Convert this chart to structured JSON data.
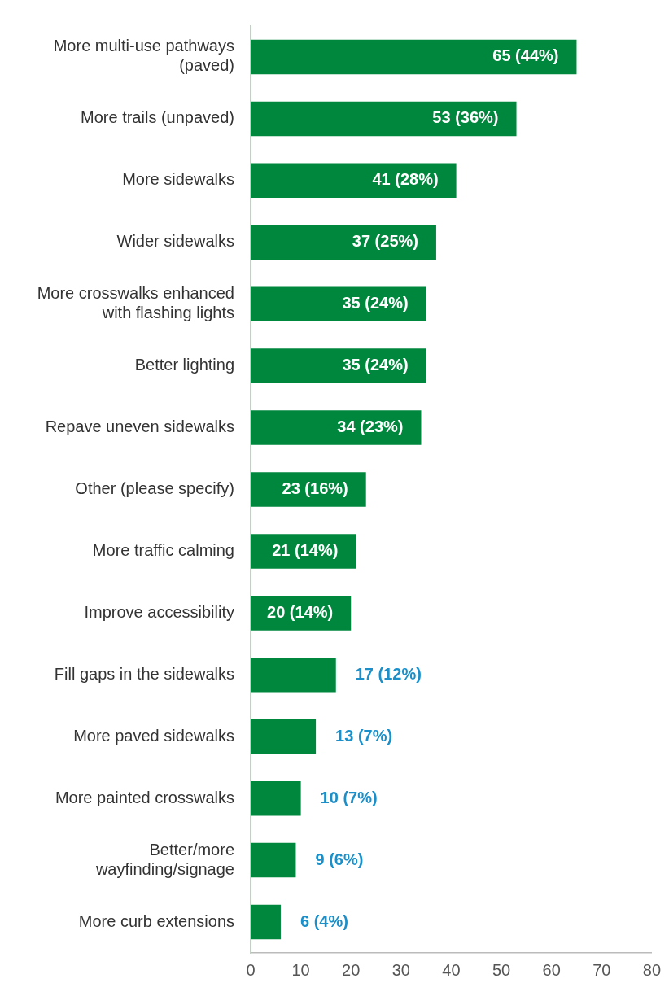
{
  "chart_data": {
    "type": "bar",
    "orientation": "horizontal",
    "categories": [
      "More multi-use pathways (paved)",
      "More trails (unpaved)",
      "More sidewalks",
      "Wider sidewalks",
      "More crosswalks enhanced with flashing lights",
      "Better lighting",
      "Repave uneven sidewalks",
      "Other (please specify)",
      "More traffic calming",
      "Improve accessibility",
      "Fill gaps in the sidewalks",
      "More paved sidewalks",
      "More painted crosswalks",
      "Better/more wayfinding/signage",
      "More curb extensions"
    ],
    "values": [
      65,
      53,
      41,
      37,
      35,
      35,
      34,
      23,
      21,
      20,
      17,
      13,
      10,
      9,
      6
    ],
    "value_labels": [
      "65 (44%)",
      "53 (36%)",
      "41 (28%)",
      "37 (25%)",
      "35 (24%)",
      "35 (24%)",
      "34 (23%)",
      "23 (16%)",
      "21 (14%)",
      "20 (14%)",
      "17 (12%)",
      "13 (7%)",
      "10 (7%)",
      "9 (6%)",
      "6 (4%)"
    ],
    "color": "#00873e",
    "xlim": [
      0,
      80
    ],
    "xticks": [
      0,
      10,
      20,
      30,
      40,
      50,
      60,
      70,
      80
    ],
    "grid": false,
    "legend": false
  }
}
